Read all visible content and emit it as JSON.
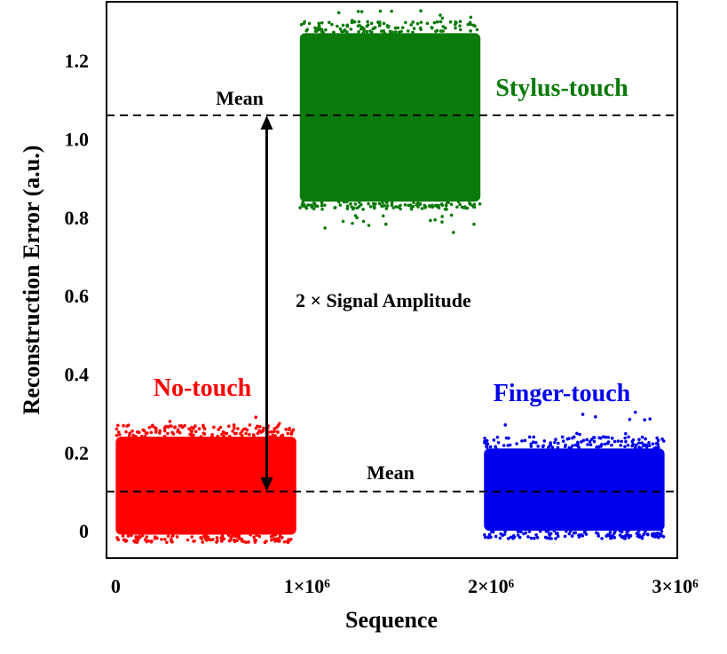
{
  "chart_data": {
    "type": "scatter",
    "title": "",
    "xlabel": "Sequence",
    "ylabel": "Reconstruction Error (a.u.)",
    "xlim": [
      -50000,
      3050000
    ],
    "ylim": [
      -0.07,
      1.35
    ],
    "x_ticks": [
      {
        "value": 0,
        "label": "0"
      },
      {
        "value": 1000000,
        "label": "1×10⁶"
      },
      {
        "value": 2000000,
        "label": "2×10⁶"
      },
      {
        "value": 3000000,
        "label": "3×10⁶"
      }
    ],
    "y_ticks": [
      {
        "value": 0,
        "label": "0"
      },
      {
        "value": 0.2,
        "label": "0.2"
      },
      {
        "value": 0.4,
        "label": "0.4"
      },
      {
        "value": 0.6,
        "label": "0.6"
      },
      {
        "value": 0.8,
        "label": "0.8"
      },
      {
        "value": 1.0,
        "label": "1.0"
      },
      {
        "value": 1.2,
        "label": "1.2"
      }
    ],
    "grid": false,
    "series": [
      {
        "name": "No-touch",
        "color": "#ff0000",
        "x_range": [
          0,
          1000000
        ],
        "y_min": -0.01,
        "y_max": 0.24,
        "y_outlier_max": 0.29,
        "mean": 0.1
      },
      {
        "name": "Stylus-touch",
        "color": "#0a7a0a",
        "x_range": [
          1000000,
          2000000
        ],
        "y_min": 0.84,
        "y_max": 1.27,
        "y_outlier_min": 0.76,
        "y_outlier_max": 1.33,
        "mean": 1.06
      },
      {
        "name": "Finger-touch",
        "color": "#0000ee",
        "x_range": [
          2000000,
          3000000
        ],
        "y_min": 0.0,
        "y_max": 0.21,
        "y_outlier_max": 0.31,
        "mean": 0.1
      }
    ],
    "mean_lines": [
      {
        "value": 1.06,
        "label": "Mean"
      },
      {
        "value": 0.1,
        "label": "Mean"
      }
    ],
    "annotation": {
      "label": "2 × Signal Amplitude",
      "x": 820000,
      "y_from": 0.1,
      "y_to": 1.06
    }
  }
}
